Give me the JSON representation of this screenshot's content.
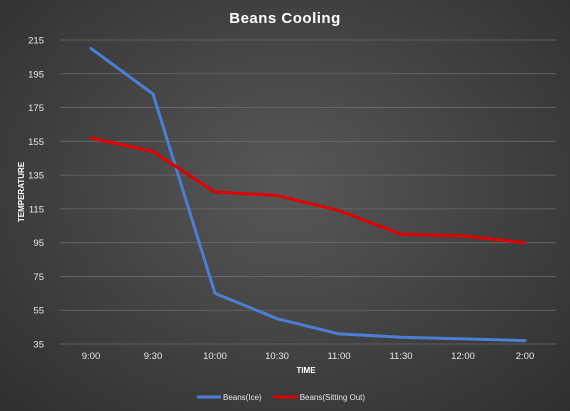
{
  "chart_data": {
    "type": "line",
    "title": "Beans Cooling",
    "xlabel": "TIME",
    "ylabel": "TEMPERATURE",
    "categories": [
      "9:00",
      "9:30",
      "10:00",
      "10:30",
      "11:00",
      "11:30",
      "12:00",
      "2:00"
    ],
    "y_ticks": [
      "35",
      "55",
      "75",
      "95",
      "115",
      "135",
      "155",
      "175",
      "195",
      "215"
    ],
    "ylim": [
      35,
      215
    ],
    "grid": true,
    "legend_position": "bottom",
    "series": [
      {
        "name": "Beans(Ice)",
        "color": "#4a7fd4",
        "values": [
          210,
          183,
          65,
          50,
          41,
          39,
          38,
          37
        ]
      },
      {
        "name": "Beans(Sitting Out)",
        "color": "#e00000",
        "values": [
          157,
          149,
          125,
          123,
          114,
          100,
          99,
          95
        ]
      }
    ]
  }
}
